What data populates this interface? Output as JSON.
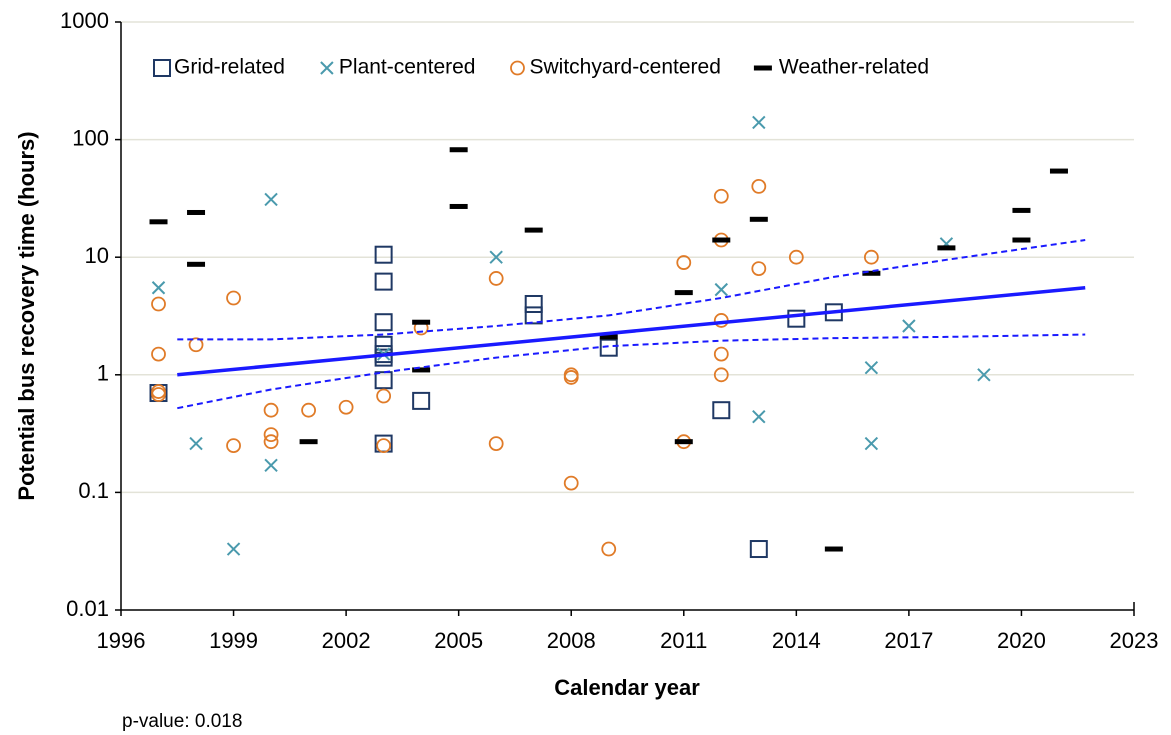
{
  "chart_data": {
    "type": "scatter",
    "x_label": "Calendar year",
    "y_label": "Potential bus recovery time (hours)",
    "annotation": "p-value: 0.018",
    "log_y": true,
    "grid": true,
    "legend": "top",
    "xlim": [
      1996,
      2023
    ],
    "xticks": [
      1996,
      1999,
      2002,
      2005,
      2008,
      2011,
      2014,
      2017,
      2020,
      2023
    ],
    "ylim": [
      0.01,
      1000
    ],
    "yticks": [
      0.01,
      0.1,
      1,
      10,
      100,
      1000
    ],
    "series": [
      {
        "name": "Grid-related",
        "marker": "square",
        "color": "#1f3864",
        "x": [
          1997,
          2003,
          2003,
          2003,
          2003,
          2003,
          2003,
          2003,
          2003,
          2004,
          2007,
          2007,
          2009,
          2012,
          2013,
          2014,
          2015
        ],
        "values": [
          0.7,
          10.5,
          6.2,
          2.8,
          1.8,
          1.5,
          1.4,
          0.9,
          0.26,
          0.6,
          4.0,
          3.2,
          1.7,
          0.5,
          0.033,
          3.0,
          3.4
        ]
      },
      {
        "name": "Plant-centered",
        "marker": "x",
        "color": "#4a9aad",
        "x": [
          1997,
          1998,
          1999,
          2000,
          2000,
          2003,
          2006,
          2012,
          2013,
          2013,
          2016,
          2016,
          2017,
          2018,
          2019
        ],
        "values": [
          5.5,
          0.26,
          0.033,
          31,
          0.17,
          1.5,
          10,
          5.3,
          140,
          0.44,
          1.15,
          0.26,
          2.6,
          13,
          1.0
        ]
      },
      {
        "name": "Switchyard-centered",
        "marker": "circle",
        "color": "#e07b28",
        "x": [
          1997,
          1997,
          1997,
          1997,
          1998,
          1999,
          1999,
          2000,
          2000,
          2000,
          2001,
          2002,
          2003,
          2003,
          2004,
          2006,
          2006,
          2008,
          2008,
          2008,
          2009,
          2011,
          2011,
          2012,
          2012,
          2012,
          2012,
          2012,
          2013,
          2013,
          2014,
          2016
        ],
        "values": [
          4.0,
          1.5,
          0.72,
          0.68,
          1.8,
          4.5,
          0.25,
          0.5,
          0.31,
          0.27,
          0.5,
          0.53,
          0.66,
          0.25,
          2.5,
          6.6,
          0.26,
          1.0,
          0.95,
          0.12,
          0.033,
          9,
          0.27,
          33,
          14,
          2.9,
          1.5,
          1.0,
          40,
          8,
          10,
          10
        ]
      },
      {
        "name": "Weather-related",
        "marker": "dash",
        "color": "#000000",
        "x": [
          1997,
          1998,
          1998,
          2001,
          2004,
          2004,
          2005,
          2005,
          2007,
          2009,
          2011,
          2011,
          2012,
          2013,
          2015,
          2016,
          2018,
          2020,
          2020,
          2021
        ],
        "values": [
          20,
          24,
          8.7,
          0.27,
          2.8,
          1.1,
          82,
          27,
          17,
          2.1,
          5,
          0.27,
          14,
          21,
          0.033,
          7.3,
          12,
          25,
          14,
          54
        ]
      },
      {
        "marker": "line",
        "style": "solid",
        "color": "#1a1aff",
        "x": [
          1997.5,
          2021.7
        ],
        "values": [
          1.0,
          5.5
        ]
      },
      {
        "marker": "line",
        "style": "dashed",
        "color": "#1a1aff",
        "x": [
          1997.5,
          2000,
          2003,
          2006,
          2009,
          2012,
          2015,
          2018,
          2021.7
        ],
        "values": [
          2.0,
          2.0,
          2.2,
          2.6,
          3.2,
          4.5,
          6.8,
          9.5,
          14
        ]
      },
      {
        "marker": "line",
        "style": "dashed",
        "color": "#1a1aff",
        "x": [
          1997.5,
          2000,
          2003,
          2006,
          2009,
          2012,
          2015,
          2018,
          2021.7
        ],
        "values": [
          0.52,
          0.75,
          1.05,
          1.4,
          1.75,
          1.95,
          2.05,
          2.1,
          2.2
        ]
      }
    ]
  }
}
